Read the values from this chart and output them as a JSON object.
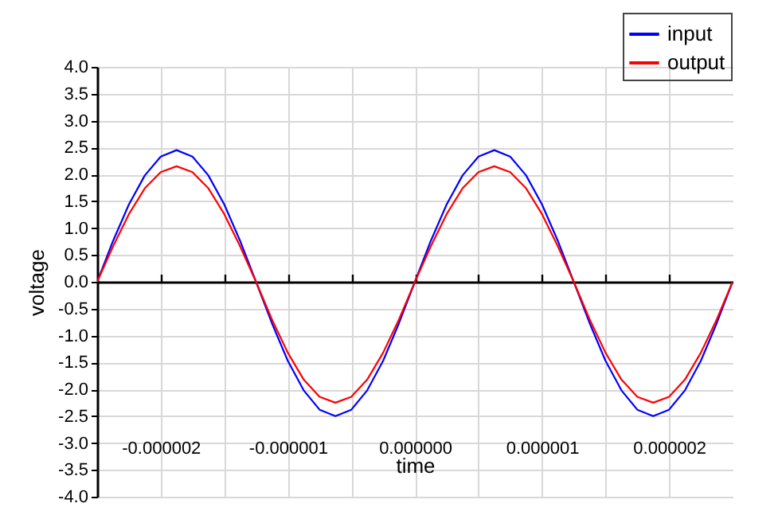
{
  "chart_data": {
    "type": "line",
    "xlabel": "time",
    "ylabel": "voltage",
    "x": [
      -2.5e-06,
      -2.375e-06,
      -2.25e-06,
      -2.125e-06,
      -2e-06,
      -1.875e-06,
      -1.75e-06,
      -1.625e-06,
      -1.5e-06,
      -1.375e-06,
      -1.25e-06,
      -1.125e-06,
      -1e-06,
      -8.75e-07,
      -7.5e-07,
      -6.25e-07,
      -5e-07,
      -3.75e-07,
      -2.5e-07,
      -1.25e-07,
      0,
      1.25e-07,
      2.5e-07,
      3.75e-07,
      5e-07,
      6.25e-07,
      7.5e-07,
      8.75e-07,
      1e-06,
      1.125e-06,
      1.25e-06,
      1.375e-06,
      1.5e-06,
      1.625e-06,
      1.75e-06,
      1.875e-06,
      2e-06,
      2.125e-06,
      2.25e-06,
      2.375e-06,
      2.5e-06
    ],
    "series": [
      {
        "name": "input",
        "color": "#0000ff",
        "values": [
          0,
          0.76,
          1.44,
          1.98,
          2.33,
          2.45,
          2.33,
          1.98,
          1.44,
          0.76,
          0,
          -0.77,
          -1.47,
          -2.02,
          -2.38,
          -2.5,
          -2.38,
          -2.02,
          -1.47,
          -0.77,
          0,
          0.76,
          1.44,
          1.98,
          2.33,
          2.45,
          2.33,
          1.98,
          1.44,
          0.76,
          0,
          -0.77,
          -1.47,
          -2.02,
          -2.38,
          -2.5,
          -2.38,
          -2.02,
          -1.47,
          -0.77,
          0
        ]
      },
      {
        "name": "output",
        "color": "#ff0000",
        "values": [
          0,
          0.66,
          1.26,
          1.74,
          2.04,
          2.15,
          2.04,
          1.74,
          1.26,
          0.66,
          0,
          -0.7,
          -1.32,
          -1.82,
          -2.14,
          -2.25,
          -2.14,
          -1.82,
          -1.32,
          -0.7,
          0,
          0.66,
          1.26,
          1.74,
          2.04,
          2.15,
          2.04,
          1.74,
          1.26,
          0.66,
          0,
          -0.7,
          -1.32,
          -1.82,
          -2.14,
          -2.25,
          -2.14,
          -1.82,
          -1.32,
          -0.7,
          0
        ]
      }
    ],
    "xlim": [
      -2.5e-06,
      2.5e-06
    ],
    "xticks": [
      {
        "value": -2e-06,
        "label": "-0.000002"
      },
      {
        "value": -1.5e-06,
        "label": null
      },
      {
        "value": -1e-06,
        "label": "-0.000001"
      },
      {
        "value": -5e-07,
        "label": null
      },
      {
        "value": 0,
        "label": "0.000000"
      },
      {
        "value": 5e-07,
        "label": null
      },
      {
        "value": 1e-06,
        "label": "0.000001"
      },
      {
        "value": 1.5e-06,
        "label": null
      },
      {
        "value": 2e-06,
        "label": "0.000002"
      }
    ],
    "ylim": [
      -4,
      4
    ],
    "yticks": [
      {
        "value": -4,
        "label": "-4.0"
      },
      {
        "value": -3.5,
        "label": "-3.5"
      },
      {
        "value": -3,
        "label": "-3.0"
      },
      {
        "value": -2.5,
        "label": "-2.5"
      },
      {
        "value": -2,
        "label": "-2.0"
      },
      {
        "value": -1.5,
        "label": "-1.5"
      },
      {
        "value": -1,
        "label": "-1.0"
      },
      {
        "value": -0.5,
        "label": "-0.5"
      },
      {
        "value": 0,
        "label": "0.0"
      },
      {
        "value": 0.5,
        "label": "0.5"
      },
      {
        "value": 1,
        "label": "1.0"
      },
      {
        "value": 1.5,
        "label": "1.5"
      },
      {
        "value": 2,
        "label": "2.0"
      },
      {
        "value": 2.5,
        "label": "2.5"
      },
      {
        "value": 3,
        "label": "3.0"
      },
      {
        "value": 3.5,
        "label": "3.5"
      },
      {
        "value": 4,
        "label": "4.0"
      }
    ],
    "grid": true,
    "legend": "top right",
    "marker": "none",
    "line_style": "solid"
  }
}
